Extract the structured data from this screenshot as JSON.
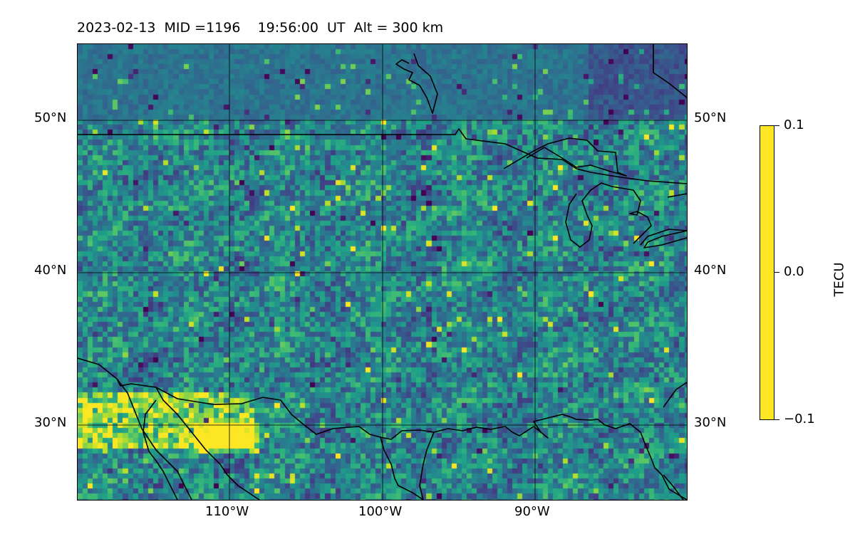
{
  "title": "2023-02-13  MID =1196    19:56:00  UT  Alt = 300 km",
  "map": {
    "lat_labels": [
      "50°N",
      "40°N",
      "30°N"
    ],
    "lon_labels": [
      "110°W",
      "100°W",
      "90°W"
    ]
  },
  "colorbar": {
    "label": "TECU",
    "ticks": [
      "0.1",
      "0.0",
      "−0.1"
    ],
    "vmin": -0.1,
    "vmax": 0.1,
    "colormap": "viridis"
  },
  "colors": {
    "coastline": "#000000",
    "gridline": "#000000"
  }
}
